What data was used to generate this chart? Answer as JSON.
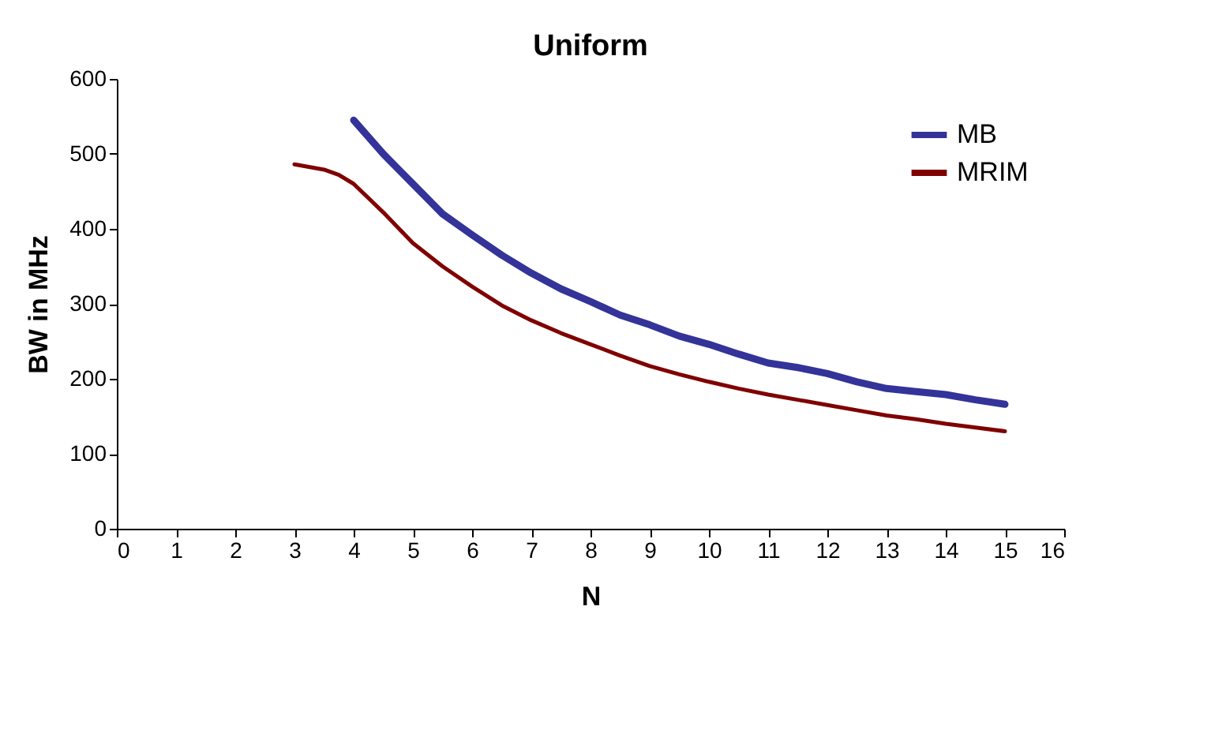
{
  "chart_data": {
    "type": "line",
    "title": "Uniform",
    "xlabel": "N",
    "ylabel": "BW in MHz",
    "xlim": [
      0,
      16
    ],
    "xticks": [
      0,
      1,
      2,
      3,
      4,
      5,
      6,
      7,
      8,
      9,
      10,
      11,
      12,
      13,
      14,
      15,
      16
    ],
    "ylim": [
      0,
      600
    ],
    "yticks": [
      0,
      100,
      200,
      300,
      400,
      500,
      600
    ],
    "grid": false,
    "legend": "top right",
    "marker": "none",
    "line_style": "solid",
    "series": [
      {
        "name": "MB",
        "color": "#333399",
        "x": [
          4,
          4.5,
          5,
          5.5,
          6,
          6.5,
          7,
          7.5,
          8,
          8.5,
          9,
          9.5,
          10,
          10.5,
          11,
          11.5,
          12,
          12.5,
          13,
          13.5,
          14,
          14.5,
          15
        ],
        "values": [
          545,
          500,
          460,
          420,
          392,
          365,
          341,
          320,
          303,
          285,
          272,
          257,
          246,
          233,
          221,
          215,
          207,
          196,
          187,
          183,
          179,
          172,
          166
        ]
      },
      {
        "name": "MRIM",
        "color": "#800000",
        "x": [
          3,
          3.5,
          3.75,
          4,
          4.5,
          5,
          5.5,
          6,
          6.5,
          7,
          7.5,
          8,
          8.5,
          9,
          9.5,
          10,
          10.5,
          11,
          11.5,
          12,
          12.5,
          13,
          13.5,
          14,
          14.5,
          15
        ],
        "values": [
          486,
          479,
          472,
          460,
          422,
          381,
          350,
          323,
          298,
          278,
          261,
          246,
          231,
          217,
          206,
          196,
          187,
          179,
          172,
          165,
          158,
          151,
          146,
          140,
          135,
          130
        ]
      }
    ]
  }
}
